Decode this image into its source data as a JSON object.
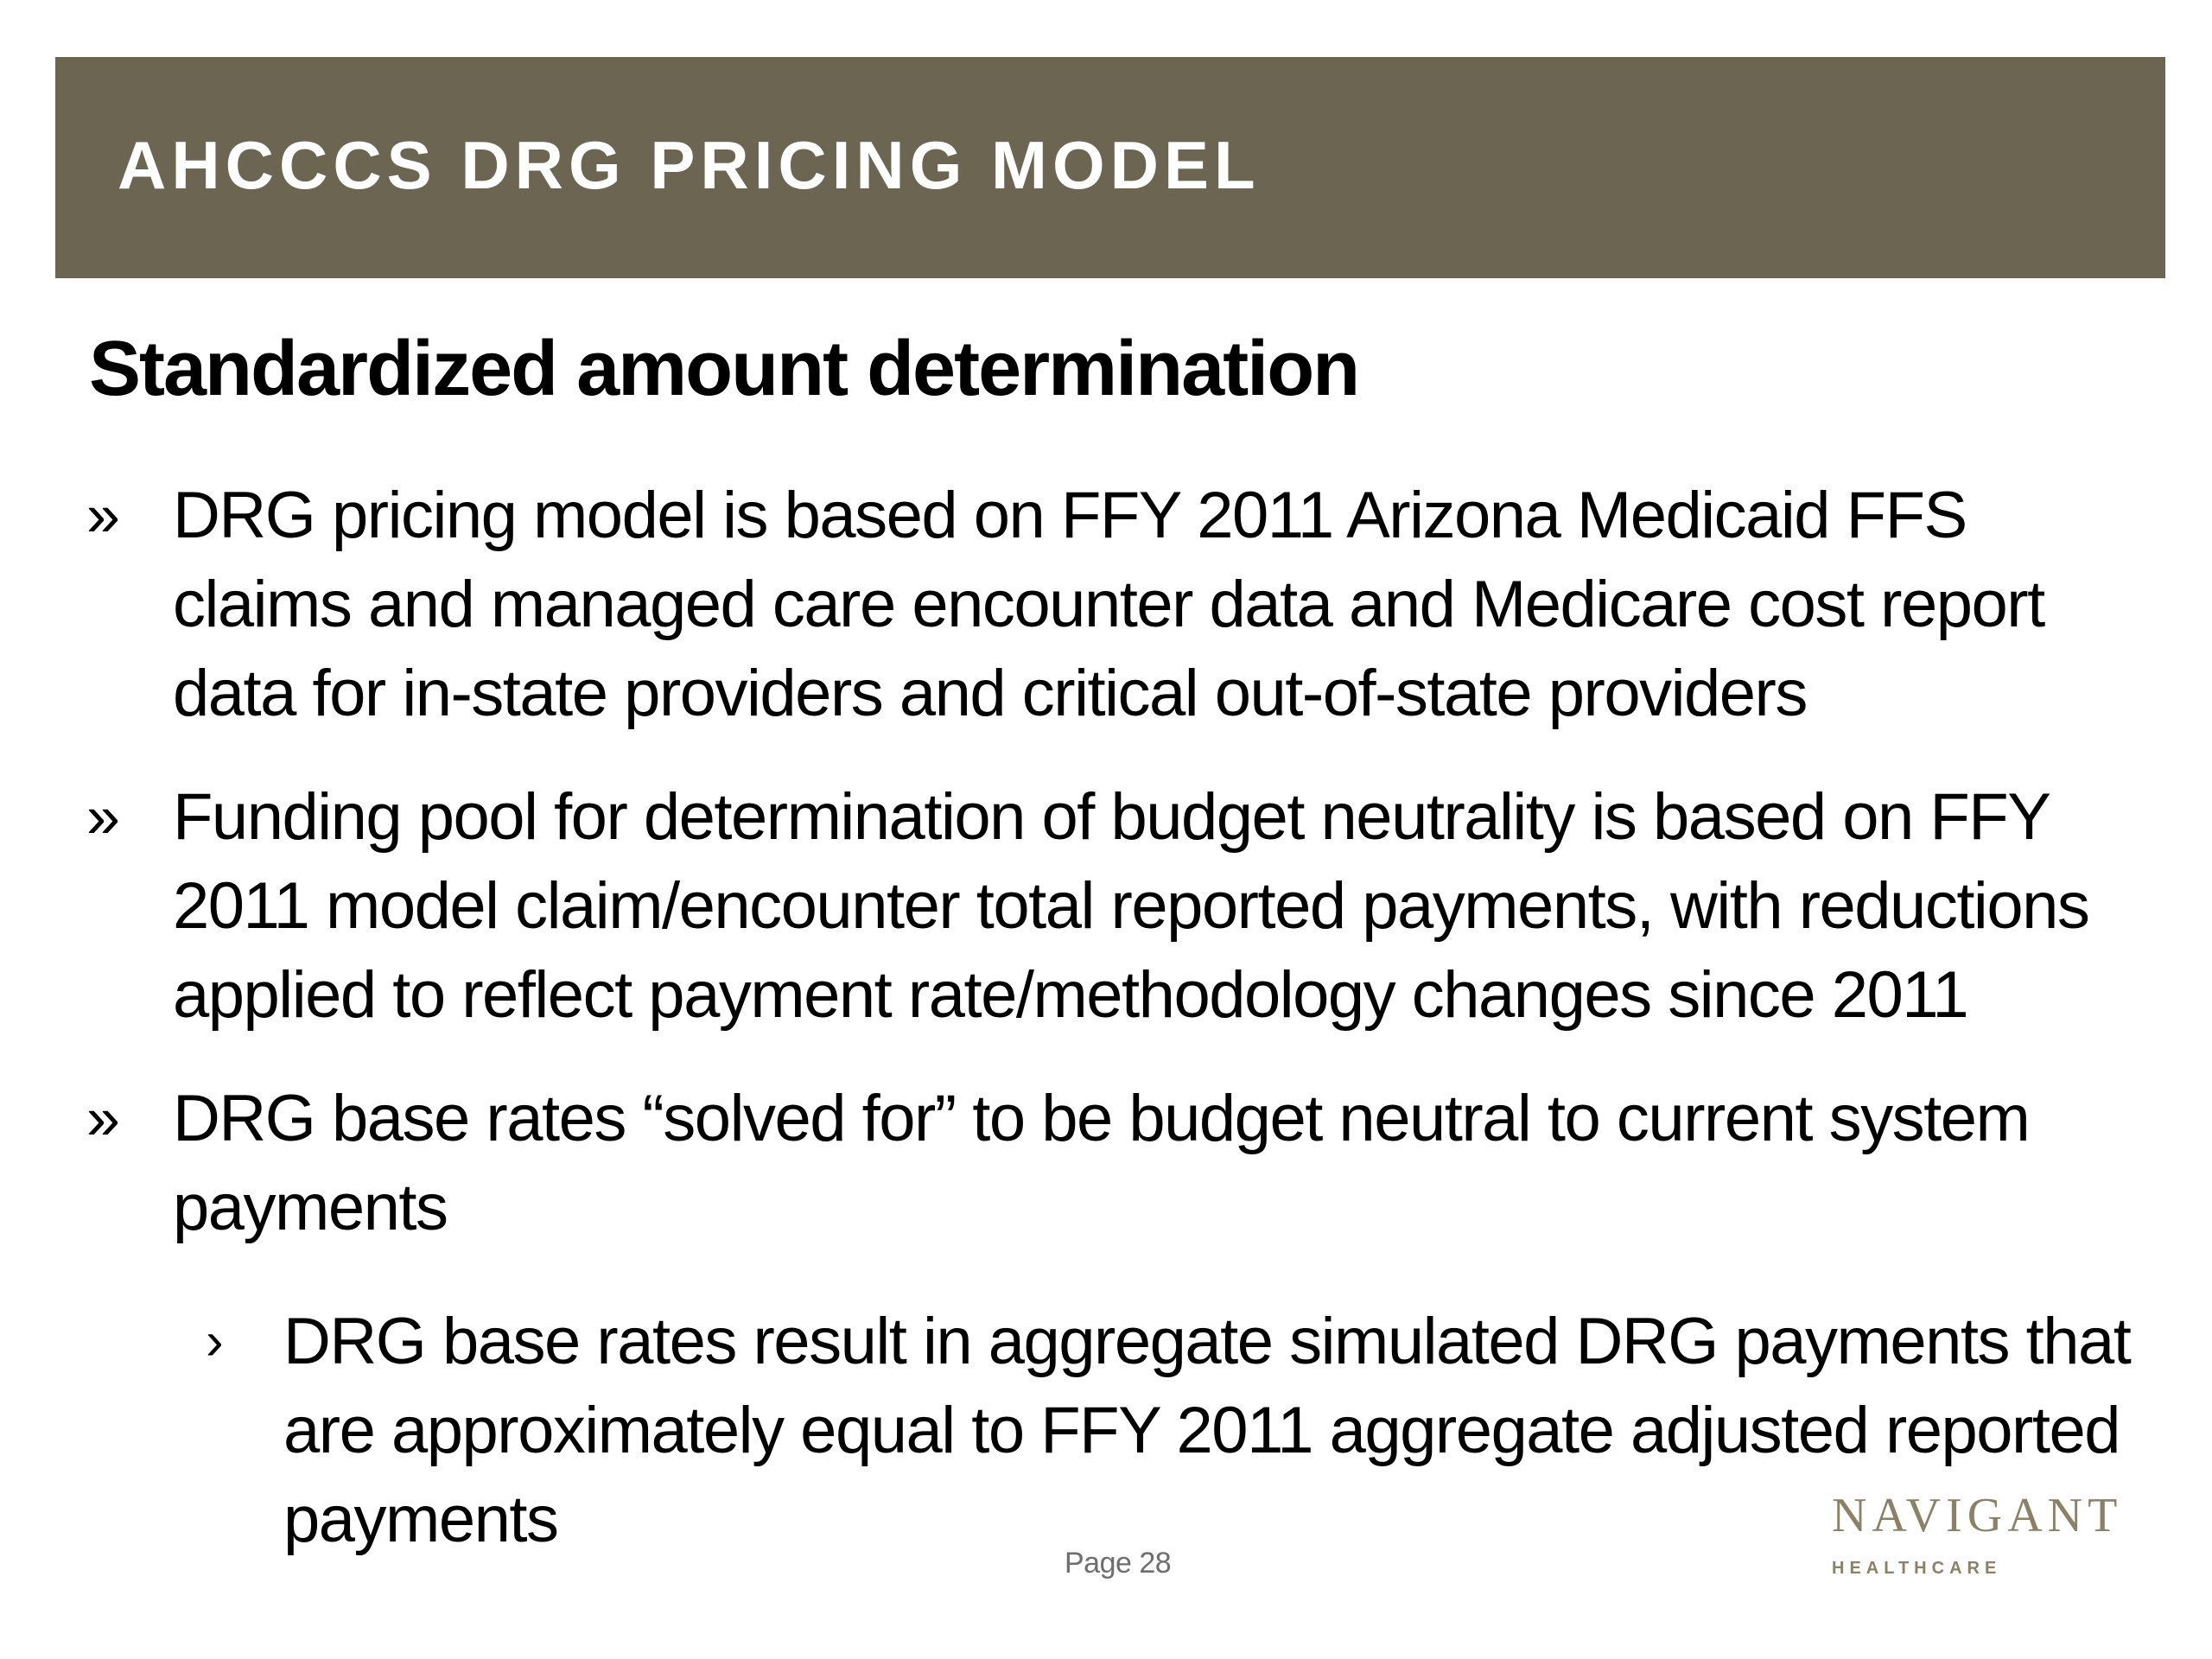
{
  "header": {
    "title": "AHCCCS DRG PRICING MODEL"
  },
  "slide": {
    "subtitle": "Standardized amount determination",
    "bullets": [
      {
        "marker": "»",
        "text": "DRG pricing model is based on FFY 2011 Arizona Medicaid FFS claims and managed care encounter data and Medicare cost report data for in-state providers and critical out-of-state providers"
      },
      {
        "marker": "»",
        "text": "Funding pool for determination of budget neutrality is based on FFY 2011 model claim/encounter total reported payments, with reductions applied to reflect payment rate/methodology changes since 2011"
      },
      {
        "marker": "»",
        "text": "DRG base rates “solved for” to be budget neutral to current system payments"
      }
    ],
    "sub_bullets": [
      {
        "marker": "›",
        "text": "DRG base rates result in aggregate simulated DRG payments that are approximately equal to FFY 2011 aggregate adjusted reported payments"
      }
    ]
  },
  "footer": {
    "page_label": "Page 28",
    "logo_name": "NAVIGANT",
    "logo_sub": "HEALTHCARE"
  }
}
